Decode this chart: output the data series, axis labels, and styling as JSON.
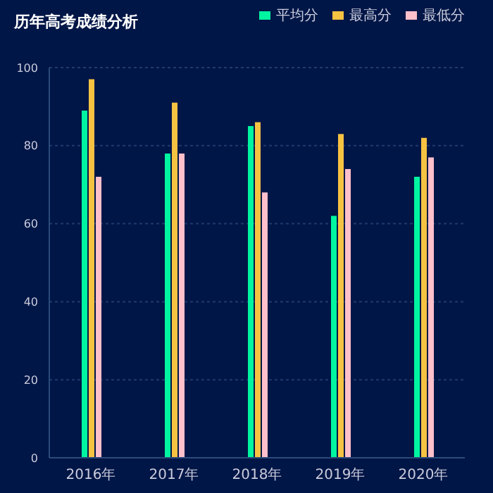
{
  "chart_data": {
    "type": "bar",
    "title": "历年高考成绩分析",
    "categories": [
      "2016年",
      "2017年",
      "2018年",
      "2019年",
      "2020年"
    ],
    "series": [
      {
        "name": "平均分",
        "color": "#00f5a0",
        "values": [
          89,
          78,
          85,
          62,
          72
        ]
      },
      {
        "name": "最高分",
        "color": "#f5c242",
        "values": [
          97,
          91,
          86,
          83,
          82
        ]
      },
      {
        "name": "最低分",
        "color": "#ffc0cb",
        "values": [
          72,
          78,
          68,
          74,
          77
        ]
      }
    ],
    "ylim": [
      0,
      100
    ],
    "yticks": [
      0,
      20,
      40,
      60,
      80,
      100
    ],
    "grid": "y",
    "legend": "top right"
  }
}
